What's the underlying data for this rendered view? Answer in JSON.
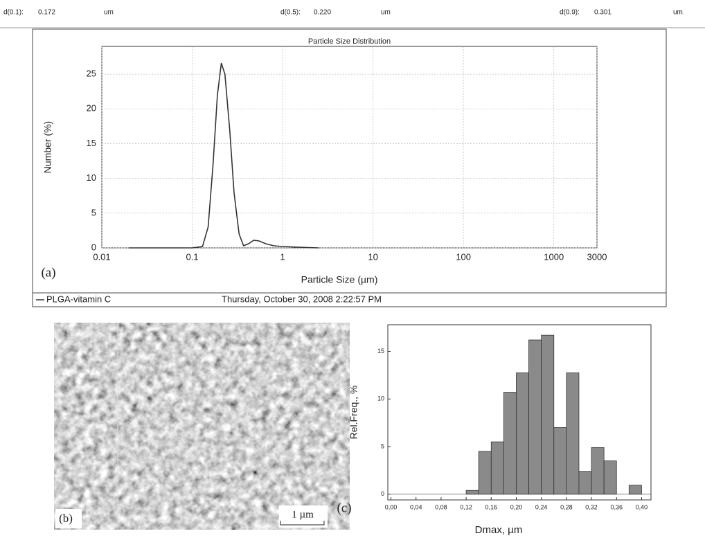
{
  "header": {
    "items": [
      {
        "label": "d(0.1):",
        "value": "0.172",
        "unit": "um"
      },
      {
        "label": "d(0.5):",
        "value": "0.220",
        "unit": "um"
      },
      {
        "label": "d(0.9):",
        "value": "0.301",
        "unit": "um"
      }
    ]
  },
  "footer": {
    "date": "Thursday, October 30, 2008 2:22:57 PM"
  },
  "image": {
    "label": "(b)",
    "scale_bar": "1 µm"
  },
  "chart_data": [
    {
      "type": "line",
      "panel": "(a)",
      "title": "Particle Size Distribution",
      "xlabel": "Particle Size (µm)",
      "ylabel": "Number (%)",
      "log_x": true,
      "grid": true,
      "xlim": [
        0.01,
        3000
      ],
      "xticks": [
        0.01,
        0.1,
        1,
        10,
        100,
        1000,
        3000
      ],
      "ylim": [
        0,
        29
      ],
      "yticks": [
        0,
        5,
        10,
        15,
        20,
        25
      ],
      "x": [
        0.02,
        0.1,
        0.13,
        0.15,
        0.17,
        0.19,
        0.21,
        0.23,
        0.26,
        0.29,
        0.33,
        0.37,
        0.42,
        0.48,
        0.55,
        0.65,
        0.8,
        1.0,
        1.5,
        2.5
      ],
      "series": [
        {
          "name": "PLGA-vitamin C",
          "color": "#333333",
          "values": [
            0,
            0,
            0.2,
            3,
            12,
            22,
            26.6,
            25,
            17,
            8,
            2,
            0.3,
            0.6,
            1.1,
            1.0,
            0.6,
            0.3,
            0.2,
            0.1,
            0
          ]
        }
      ]
    },
    {
      "type": "histogram",
      "panel": "(c)",
      "xlabel": "Dmax, µm",
      "ylabel": "Rel.Freq., %",
      "color": "#8a8a8a",
      "xlim": [
        -0.005,
        0.415
      ],
      "xticks": [
        {
          "value": 0,
          "label": "0,00"
        },
        {
          "value": 0.04,
          "label": "0,04"
        },
        {
          "value": 0.08,
          "label": "0,08"
        },
        {
          "value": 0.12,
          "label": "0,12"
        },
        {
          "value": 0.16,
          "label": "0,16"
        },
        {
          "value": 0.2,
          "label": "0,20"
        },
        {
          "value": 0.24,
          "label": "0,24"
        },
        {
          "value": 0.28,
          "label": "0,28"
        },
        {
          "value": 0.32,
          "label": "0,32"
        },
        {
          "value": 0.36,
          "label": "0,36"
        },
        {
          "value": 0.4,
          "label": "0,40"
        }
      ],
      "ylim": [
        -0.6,
        17.8
      ],
      "yticks": [
        0,
        5,
        10,
        15
      ],
      "bins": [
        0.12,
        0.14,
        0.16,
        0.18,
        0.2,
        0.22,
        0.24,
        0.26,
        0.28,
        0.3,
        0.32,
        0.34,
        0.36,
        0.38,
        0.4
      ],
      "values": [
        0.4,
        4.5,
        5.5,
        10.7,
        12.75,
        16.2,
        16.7,
        7,
        12.75,
        2.4,
        4.9,
        3.5,
        0,
        0.95
      ]
    }
  ]
}
